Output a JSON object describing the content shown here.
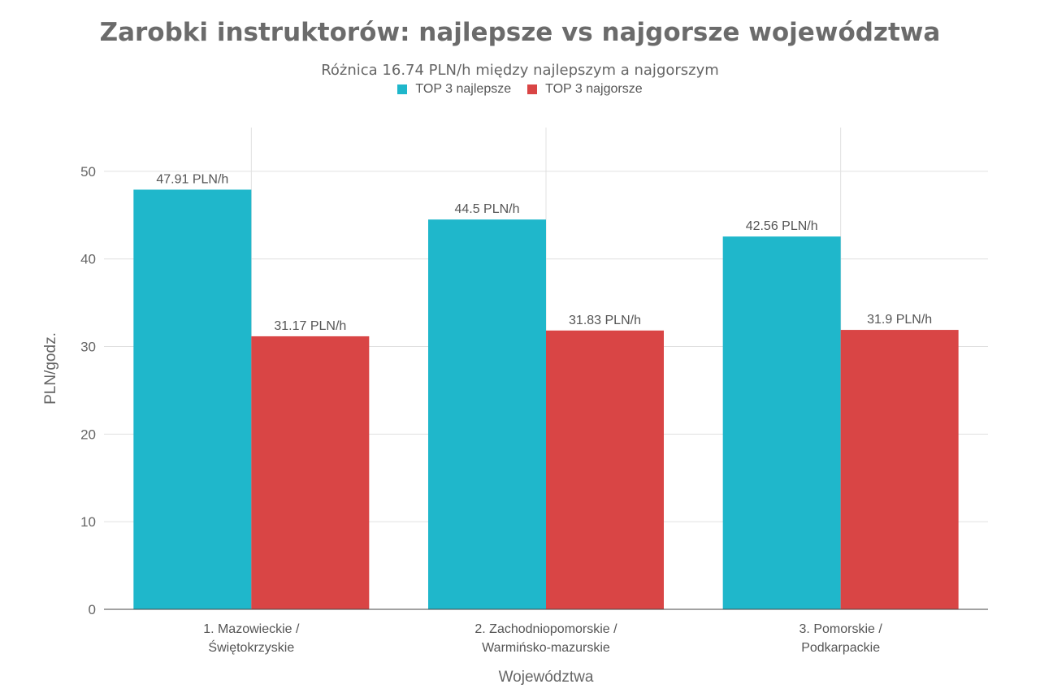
{
  "chart_data": {
    "type": "bar",
    "title": "Zarobki instruktorów: najlepsze vs najgorsze województwa",
    "subtitle": "Różnica 16.74 PLN/h między najlepszym a najgorszym",
    "xlabel": "Województwa",
    "ylabel": "PLN/godz.",
    "ylim": [
      0,
      55
    ],
    "yticks": [
      0,
      10,
      20,
      30,
      40,
      50
    ],
    "grid": true,
    "legend_position": "top-center",
    "categories": [
      [
        "1. Mazowieckie /",
        "Świętokrzyskie"
      ],
      [
        "2. Zachodniopomorskie /",
        "Warmińsko-mazurskie"
      ],
      [
        "3. Pomorskie /",
        "Podkarpackie"
      ]
    ],
    "series": [
      {
        "name": "TOP 3 najlepsze",
        "color": "#1fb7cb",
        "values": [
          47.91,
          44.5,
          42.56
        ],
        "labels": [
          "47.91 PLN/h",
          "44.5 PLN/h",
          "42.56 PLN/h"
        ]
      },
      {
        "name": "TOP 3 najgorsze",
        "color": "#d94545",
        "values": [
          31.17,
          31.83,
          31.9
        ],
        "labels": [
          "31.17 PLN/h",
          "31.83 PLN/h",
          "31.9 PLN/h"
        ]
      }
    ]
  }
}
